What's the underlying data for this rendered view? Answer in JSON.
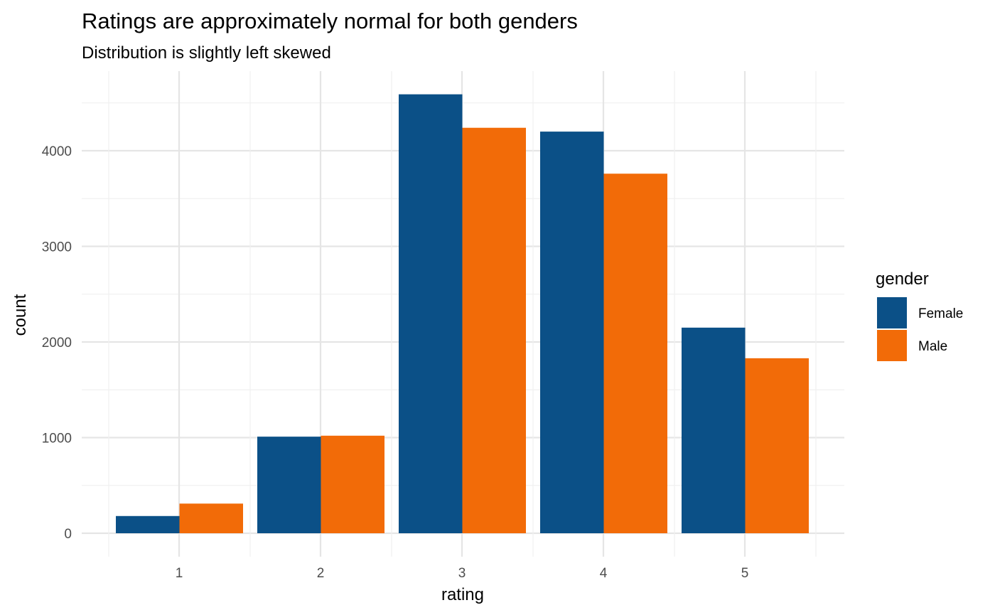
{
  "chart_data": {
    "type": "bar",
    "title": "Ratings are approximately normal for both genders",
    "subtitle": "Distribution is slightly left skewed",
    "xlabel": "rating",
    "ylabel": "count",
    "categories": [
      "1",
      "2",
      "3",
      "4",
      "5"
    ],
    "ylim": [
      -250,
      4770
    ],
    "yticks": [
      0,
      1000,
      2000,
      3000,
      4000
    ],
    "ytick_labels": [
      "0",
      "1000",
      "2000",
      "3000",
      "4000"
    ],
    "grid": true,
    "legend": {
      "title": "gender",
      "position": "right"
    },
    "series": [
      {
        "name": "Female",
        "color": "#0b5087",
        "values": [
          180,
          1010,
          4590,
          4200,
          2150
        ]
      },
      {
        "name": "Male",
        "color": "#f26b08",
        "values": [
          310,
          1020,
          4240,
          3760,
          1830
        ]
      }
    ]
  }
}
